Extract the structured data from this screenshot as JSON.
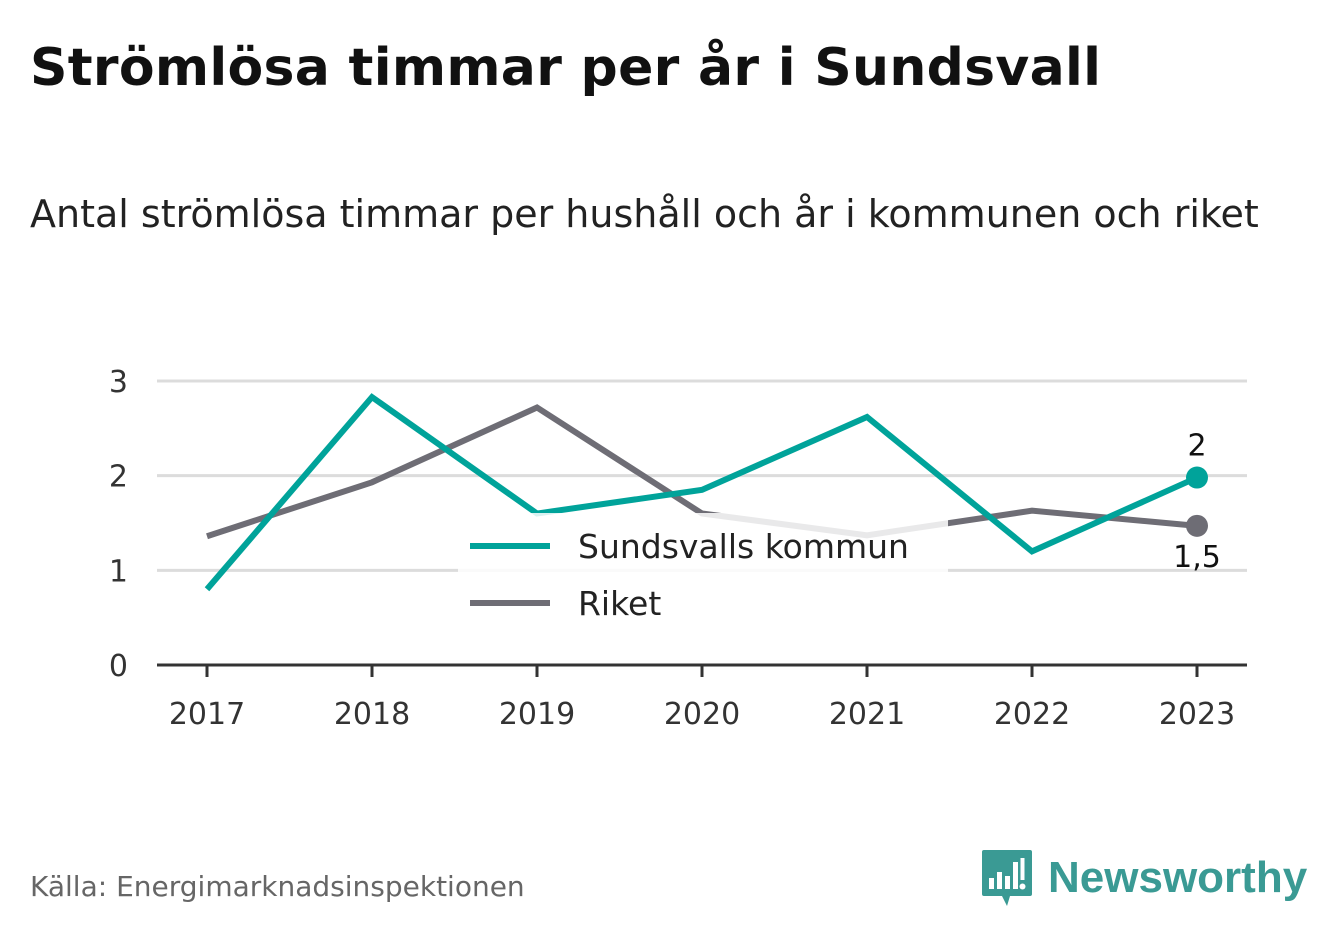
{
  "header": {
    "title": "Strömlösa timmar per år i Sundsvall",
    "subtitle": "Antal strömlösa timmar per hushåll och år i kommunen och riket"
  },
  "footer": {
    "source": "Källa: Energimarknadsinspektionen",
    "brand": "Newsworthy",
    "brand_logo_icon": "bar-chart-speech-bubble-icon"
  },
  "colors": {
    "series_primary": "#00a39a",
    "series_secondary": "#6e6d75",
    "grid": "#dcdcdc",
    "axis": "#333333",
    "brand": "#3a9a94"
  },
  "chart_data": {
    "type": "line",
    "title": "Strömlösa timmar per år i Sundsvall",
    "subtitle": "Antal strömlösa timmar per hushåll och år i kommunen och riket",
    "x": [
      "2017",
      "2018",
      "2019",
      "2020",
      "2021",
      "2022",
      "2023"
    ],
    "series": [
      {
        "name": "Sundsvalls kommun",
        "values": [
          0.8,
          2.83,
          1.6,
          1.85,
          2.62,
          1.2,
          1.98
        ],
        "end_label": "2"
      },
      {
        "name": "Riket",
        "values": [
          1.36,
          1.93,
          2.72,
          1.6,
          1.37,
          1.63,
          1.47
        ],
        "end_label": "1,5"
      }
    ],
    "ylim": [
      0,
      3
    ],
    "yticks": [
      "0",
      "1",
      "2",
      "3"
    ],
    "xlabel": "",
    "ylabel": "",
    "grid": true,
    "legend": "inside-center"
  }
}
